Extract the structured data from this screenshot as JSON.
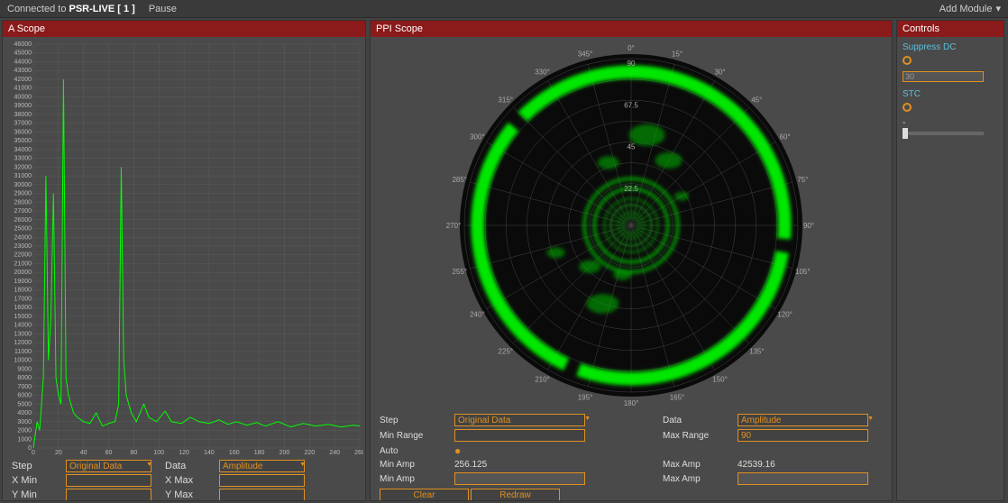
{
  "topbar": {
    "status_prefix": "Connected to ",
    "status_name": "PSR-LIVE [ 1 ]",
    "pause": "Pause",
    "add_module": "Add Module"
  },
  "ascope": {
    "title": "A Scope",
    "y_ticks": [
      46000,
      45000,
      44000,
      43000,
      42000,
      41000,
      40000,
      39000,
      38000,
      37000,
      36000,
      35000,
      34000,
      33000,
      32000,
      31000,
      30000,
      29000,
      28000,
      27000,
      26000,
      25000,
      24000,
      23000,
      22000,
      21000,
      20000,
      19000,
      18000,
      17000,
      16000,
      15000,
      14000,
      13000,
      12000,
      11000,
      10000,
      9000,
      8000,
      7000,
      6000,
      5000,
      4000,
      3000,
      2000,
      1000,
      0
    ],
    "x_ticks": [
      0,
      20,
      40,
      60,
      80,
      100,
      120,
      140,
      160,
      180,
      200,
      220,
      240,
      260
    ],
    "line_color": "#00ff00",
    "grid_color": "#666666",
    "bg_color": "#4a4a4a",
    "data": [
      [
        0,
        0
      ],
      [
        3,
        3000
      ],
      [
        5,
        2000
      ],
      [
        8,
        8000
      ],
      [
        10,
        31000
      ],
      [
        12,
        10000
      ],
      [
        14,
        15000
      ],
      [
        16,
        29000
      ],
      [
        18,
        8000
      ],
      [
        20,
        6000
      ],
      [
        22,
        5000
      ],
      [
        24,
        42000
      ],
      [
        26,
        8000
      ],
      [
        28,
        6000
      ],
      [
        30,
        5000
      ],
      [
        32,
        4000
      ],
      [
        35,
        3500
      ],
      [
        40,
        3000
      ],
      [
        45,
        2800
      ],
      [
        50,
        4000
      ],
      [
        55,
        2500
      ],
      [
        60,
        2800
      ],
      [
        65,
        3000
      ],
      [
        68,
        5000
      ],
      [
        70,
        32000
      ],
      [
        72,
        10000
      ],
      [
        74,
        6000
      ],
      [
        78,
        4000
      ],
      [
        82,
        3000
      ],
      [
        88,
        5000
      ],
      [
        92,
        3500
      ],
      [
        98,
        3000
      ],
      [
        105,
        4200
      ],
      [
        110,
        3000
      ],
      [
        118,
        2800
      ],
      [
        125,
        3500
      ],
      [
        132,
        3000
      ],
      [
        140,
        2800
      ],
      [
        148,
        3200
      ],
      [
        155,
        2700
      ],
      [
        162,
        3000
      ],
      [
        170,
        2600
      ],
      [
        178,
        2900
      ],
      [
        185,
        2500
      ],
      [
        195,
        3000
      ],
      [
        205,
        2400
      ],
      [
        215,
        2800
      ],
      [
        225,
        2500
      ],
      [
        235,
        2700
      ],
      [
        245,
        2400
      ],
      [
        255,
        2600
      ],
      [
        260,
        2500
      ]
    ],
    "controls": {
      "step_label": "Step",
      "step_value": "Original Data",
      "data_label": "Data",
      "data_value": "Amplitude",
      "xmin_label": "X Min",
      "xmax_label": "X Max",
      "ymin_label": "Y Min",
      "ymax_label": "Y Max"
    }
  },
  "ppi": {
    "title": "PPI Scope",
    "angle_labels": [
      "0°",
      "15°",
      "30°",
      "45°",
      "60°",
      "75°",
      "90°",
      "105°",
      "120°",
      "135°",
      "150°",
      "165°",
      "180°",
      "195°",
      "210°",
      "225°",
      "240°",
      "255°",
      "270°",
      "285°",
      "300°",
      "315°",
      "330°",
      "345°"
    ],
    "range_labels": [
      "90",
      "67.5",
      "45",
      "22.5"
    ],
    "ring_color": "#666666",
    "glow_color": "#00ff00",
    "bg_color": "#1a1a1a",
    "controls": {
      "step_label": "Step",
      "step_value": "Original Data",
      "data_label": "Data",
      "data_value": "Amplitude",
      "minrange_label": "Min Range",
      "maxrange_label": "Max Range",
      "maxrange_value": "90",
      "auto_label": "Auto",
      "minamp_label": "Min Amp",
      "minamp_value": "256.125",
      "maxamp_label": "Max Amp",
      "maxamp_value": "42539.16",
      "minamp2_label": "Min Amp",
      "maxamp2_label": "Max Amp",
      "clear_btn": "Clear",
      "redraw_btn": "Redraw"
    }
  },
  "controls_panel": {
    "title": "Controls",
    "suppress_dc_label": "Suppress DC",
    "suppress_dc_value": "30",
    "stc_label": "STC",
    "stc_dash": "-"
  },
  "colors": {
    "panel_header": "#8b1a1a",
    "accent": "#e09020",
    "cyan": "#5bc0de",
    "green": "#00ff00"
  }
}
